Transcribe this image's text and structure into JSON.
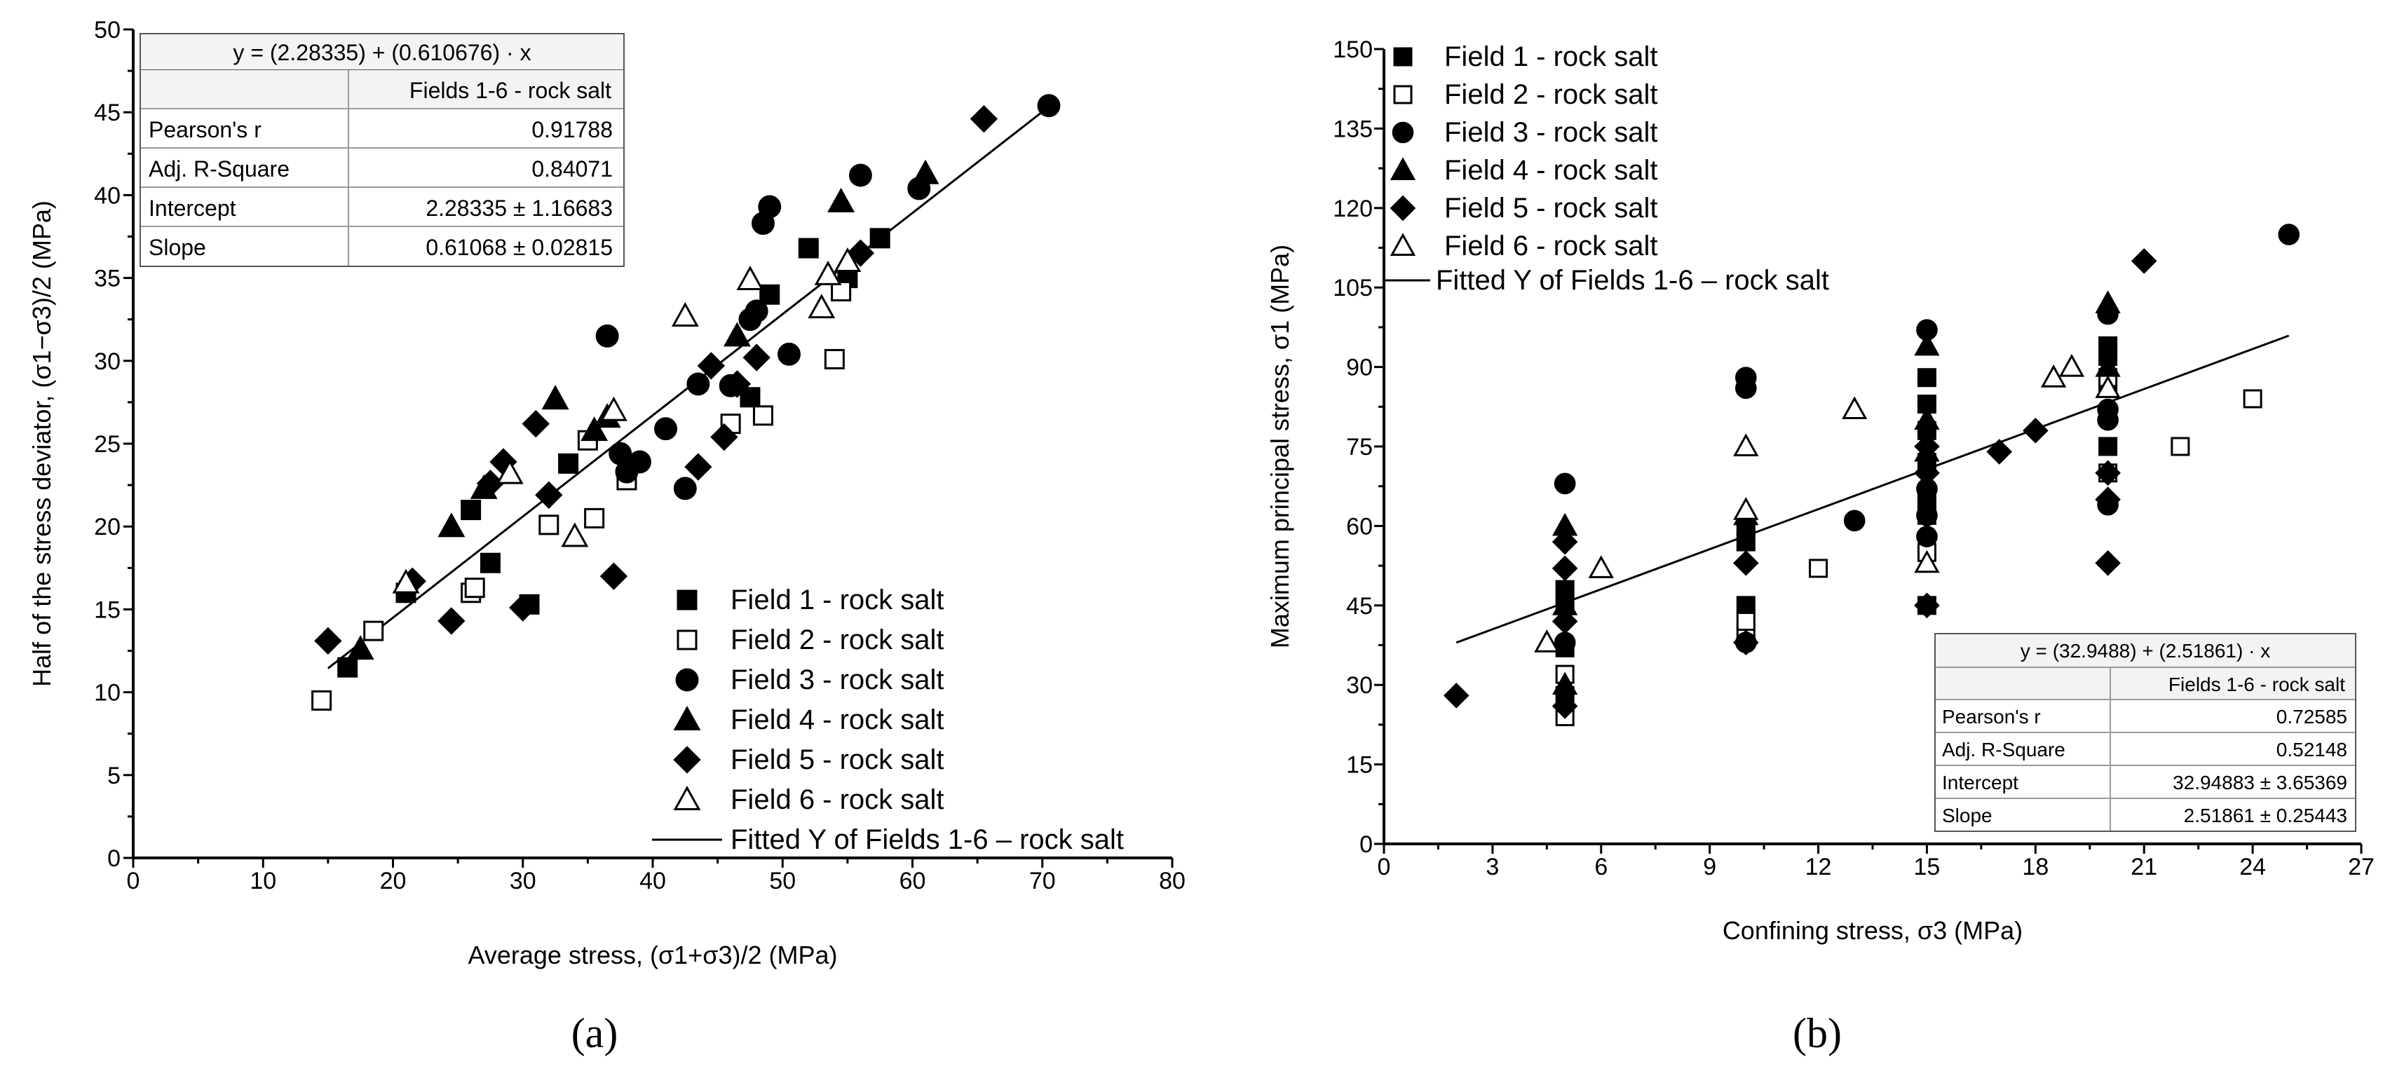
{
  "chart_data": [
    {
      "type": "scatter",
      "panel_label": "(a)",
      "xlabel": "Average stress, (σ1+σ3)/2 (MPa)",
      "ylabel": "Half of the stress deviator, (σ1−σ3)/2 (MPa)",
      "xlim": [
        0,
        80
      ],
      "ylim": [
        0,
        50
      ],
      "xticks": [
        0,
        10,
        20,
        30,
        40,
        50,
        60,
        70,
        80
      ],
      "yticks": [
        0,
        5,
        10,
        15,
        20,
        25,
        30,
        35,
        40,
        45,
        50
      ],
      "grid": false,
      "legend_position": "bottom-right",
      "series": [
        {
          "name": "Field 1 - rock salt",
          "marker": "filled-square",
          "points": [
            [
              16.5,
              11.5
            ],
            [
              21,
              16
            ],
            [
              26,
              21
            ],
            [
              27.5,
              17.8
            ],
            [
              30.5,
              15.3
            ],
            [
              33.5,
              23.8
            ],
            [
              47.5,
              27.8
            ],
            [
              49,
              34
            ],
            [
              52,
              36.8
            ],
            [
              55,
              35
            ],
            [
              57.5,
              37.4
            ]
          ]
        },
        {
          "name": "Field 2 - rock salt",
          "marker": "open-square",
          "points": [
            [
              14.5,
              9.5
            ],
            [
              18.5,
              13.7
            ],
            [
              26,
              16
            ],
            [
              26.3,
              16.3
            ],
            [
              32,
              20.1
            ],
            [
              35,
              25.2
            ],
            [
              35.5,
              20.5
            ],
            [
              38,
              22.8
            ],
            [
              46,
              26.2
            ],
            [
              48.5,
              26.7
            ],
            [
              54,
              30.1
            ],
            [
              54.5,
              34.2
            ]
          ]
        },
        {
          "name": "Field 3 - rock salt",
          "marker": "filled-circle",
          "points": [
            [
              36.5,
              31.5
            ],
            [
              37.5,
              24.4
            ],
            [
              38,
              23.3
            ],
            [
              39,
              23.9
            ],
            [
              41,
              25.9
            ],
            [
              42.5,
              22.3
            ],
            [
              43.5,
              28.6
            ],
            [
              46,
              28.5
            ],
            [
              47.5,
              32.5
            ],
            [
              48,
              33
            ],
            [
              48.5,
              38.3
            ],
            [
              49,
              39.3
            ],
            [
              50.5,
              30.4
            ],
            [
              56,
              41.2
            ],
            [
              60.5,
              40.4
            ],
            [
              70.5,
              45.4
            ]
          ]
        },
        {
          "name": "Field 4 - rock salt",
          "marker": "filled-triangle",
          "points": [
            [
              17.5,
              12.6
            ],
            [
              24.5,
              20
            ],
            [
              27,
              22.3
            ],
            [
              32.5,
              27.7
            ],
            [
              35.5,
              25.8
            ],
            [
              36.5,
              26.6
            ],
            [
              46.5,
              31.5
            ],
            [
              54.5,
              39.6
            ],
            [
              61,
              41.3
            ]
          ]
        },
        {
          "name": "Field 5 - rock salt",
          "marker": "filled-diamond",
          "points": [
            [
              15,
              13.1
            ],
            [
              21.5,
              16.7
            ],
            [
              24.5,
              14.3
            ],
            [
              27.5,
              22.6
            ],
            [
              28.5,
              23.9
            ],
            [
              30,
              15.1
            ],
            [
              31,
              26.2
            ],
            [
              32,
              21.9
            ],
            [
              37,
              17
            ],
            [
              43.5,
              23.6
            ],
            [
              44.5,
              29.7
            ],
            [
              45.5,
              25.4
            ],
            [
              46.5,
              28.6
            ],
            [
              48,
              30.2
            ],
            [
              56,
              36.5
            ],
            [
              65.5,
              44.6
            ]
          ]
        },
        {
          "name": "Field 6 - rock salt",
          "marker": "open-triangle",
          "points": [
            [
              21,
              16.6
            ],
            [
              29,
              23.2
            ],
            [
              34,
              19.4
            ],
            [
              37,
              27
            ],
            [
              42.5,
              32.7
            ],
            [
              47.5,
              34.9
            ],
            [
              53,
              33.2
            ],
            [
              53.5,
              35.2
            ],
            [
              55,
              36
            ]
          ]
        }
      ],
      "fit": {
        "name": "Fitted Y of Fields 1-6 – rock salt",
        "intercept": 2.28335,
        "slope": 0.610676,
        "x_range": [
          15,
          70.5
        ]
      },
      "stats_table": {
        "equation": "y = (2.28335) + (0.610676) · x",
        "header": [
          "",
          "Fields 1-6 - rock salt"
        ],
        "rows": [
          [
            "Pearson's r",
            "0.91788"
          ],
          [
            "Adj. R-Square",
            "0.84071"
          ],
          [
            "Intercept",
            "2.28335 ± 1.16683"
          ],
          [
            "Slope",
            "0.61068 ± 0.02815"
          ]
        ]
      }
    },
    {
      "type": "scatter",
      "panel_label": "(b)",
      "xlabel": "Confining stress, σ3 (MPa)",
      "ylabel": "Maximum principal stress, σ1 (MPa)",
      "xlim": [
        0,
        27
      ],
      "ylim": [
        0,
        150
      ],
      "xticks": [
        0,
        3,
        6,
        9,
        12,
        15,
        18,
        21,
        24,
        27
      ],
      "yticks": [
        0,
        15,
        30,
        45,
        60,
        75,
        90,
        105,
        120,
        135,
        150
      ],
      "grid": false,
      "legend_position": "top-left",
      "series": [
        {
          "name": "Field 1 - rock salt",
          "marker": "filled-square",
          "points": [
            [
              5,
              28
            ],
            [
              5,
              37
            ],
            [
              5,
              45
            ],
            [
              5,
              48
            ],
            [
              10,
              45
            ],
            [
              10,
              57
            ],
            [
              10,
              60
            ],
            [
              15,
              45
            ],
            [
              15,
              65
            ],
            [
              15,
              72
            ],
            [
              15,
              78
            ],
            [
              15,
              83
            ],
            [
              15,
              88
            ],
            [
              20,
              75
            ],
            [
              20,
              87
            ],
            [
              20,
              92
            ],
            [
              20,
              94
            ]
          ]
        },
        {
          "name": "Field 2 - rock salt",
          "marker": "open-square",
          "points": [
            [
              5,
              24
            ],
            [
              5,
              32
            ],
            [
              10,
              40
            ],
            [
              10,
              42
            ],
            [
              12,
              52
            ],
            [
              15,
              55
            ],
            [
              15,
              62
            ],
            [
              20,
              70
            ],
            [
              20,
              88
            ],
            [
              22,
              75
            ],
            [
              24,
              84
            ]
          ]
        },
        {
          "name": "Field 3 - rock salt",
          "marker": "filled-circle",
          "points": [
            [
              5,
              38
            ],
            [
              5,
              68
            ],
            [
              10,
              38
            ],
            [
              10,
              86
            ],
            [
              10,
              88
            ],
            [
              13,
              61
            ],
            [
              15,
              58
            ],
            [
              15,
              62
            ],
            [
              15,
              67
            ],
            [
              15,
              97
            ],
            [
              20,
              64
            ],
            [
              20,
              80
            ],
            [
              20,
              82
            ],
            [
              20,
              100
            ],
            [
              25,
              115
            ]
          ]
        },
        {
          "name": "Field 4 - rock salt",
          "marker": "filled-triangle",
          "points": [
            [
              5,
              30
            ],
            [
              5,
              45
            ],
            [
              5,
              60
            ],
            [
              10,
              62
            ],
            [
              15,
              74
            ],
            [
              15,
              80
            ],
            [
              15,
              94
            ],
            [
              20,
              90
            ],
            [
              20,
              102
            ]
          ]
        },
        {
          "name": "Field 5 - rock salt",
          "marker": "filled-diamond",
          "points": [
            [
              2,
              28
            ],
            [
              5,
              26
            ],
            [
              5,
              42
            ],
            [
              5,
              52
            ],
            [
              5,
              57
            ],
            [
              10,
              38
            ],
            [
              10,
              53
            ],
            [
              15,
              45
            ],
            [
              15,
              70
            ],
            [
              15,
              75
            ],
            [
              17,
              74
            ],
            [
              18,
              78
            ],
            [
              20,
              53
            ],
            [
              20,
              65
            ],
            [
              20,
              70
            ],
            [
              21,
              110
            ]
          ]
        },
        {
          "name": "Field 6 - rock salt",
          "marker": "open-triangle",
          "points": [
            [
              4.5,
              38
            ],
            [
              6,
              52
            ],
            [
              10,
              63
            ],
            [
              10,
              75
            ],
            [
              13,
              82
            ],
            [
              15,
              53
            ],
            [
              18.5,
              88
            ],
            [
              19,
              90
            ],
            [
              20,
              86
            ]
          ]
        }
      ],
      "fit": {
        "name": "Fitted Y of Fields 1-6 – rock salt",
        "intercept": 32.9488,
        "slope": 2.51861,
        "x_range": [
          2,
          25
        ]
      },
      "stats_table": {
        "equation": "y = (32.9488) + (2.51861) · x",
        "header": [
          "",
          "Fields 1-6 - rock salt"
        ],
        "rows": [
          [
            "Pearson's r",
            "0.72585"
          ],
          [
            "Adj. R-Square",
            "0.52148"
          ],
          [
            "Intercept",
            "32.94883 ± 3.65369"
          ],
          [
            "Slope",
            "2.51861 ± 0.25443"
          ]
        ]
      }
    }
  ]
}
